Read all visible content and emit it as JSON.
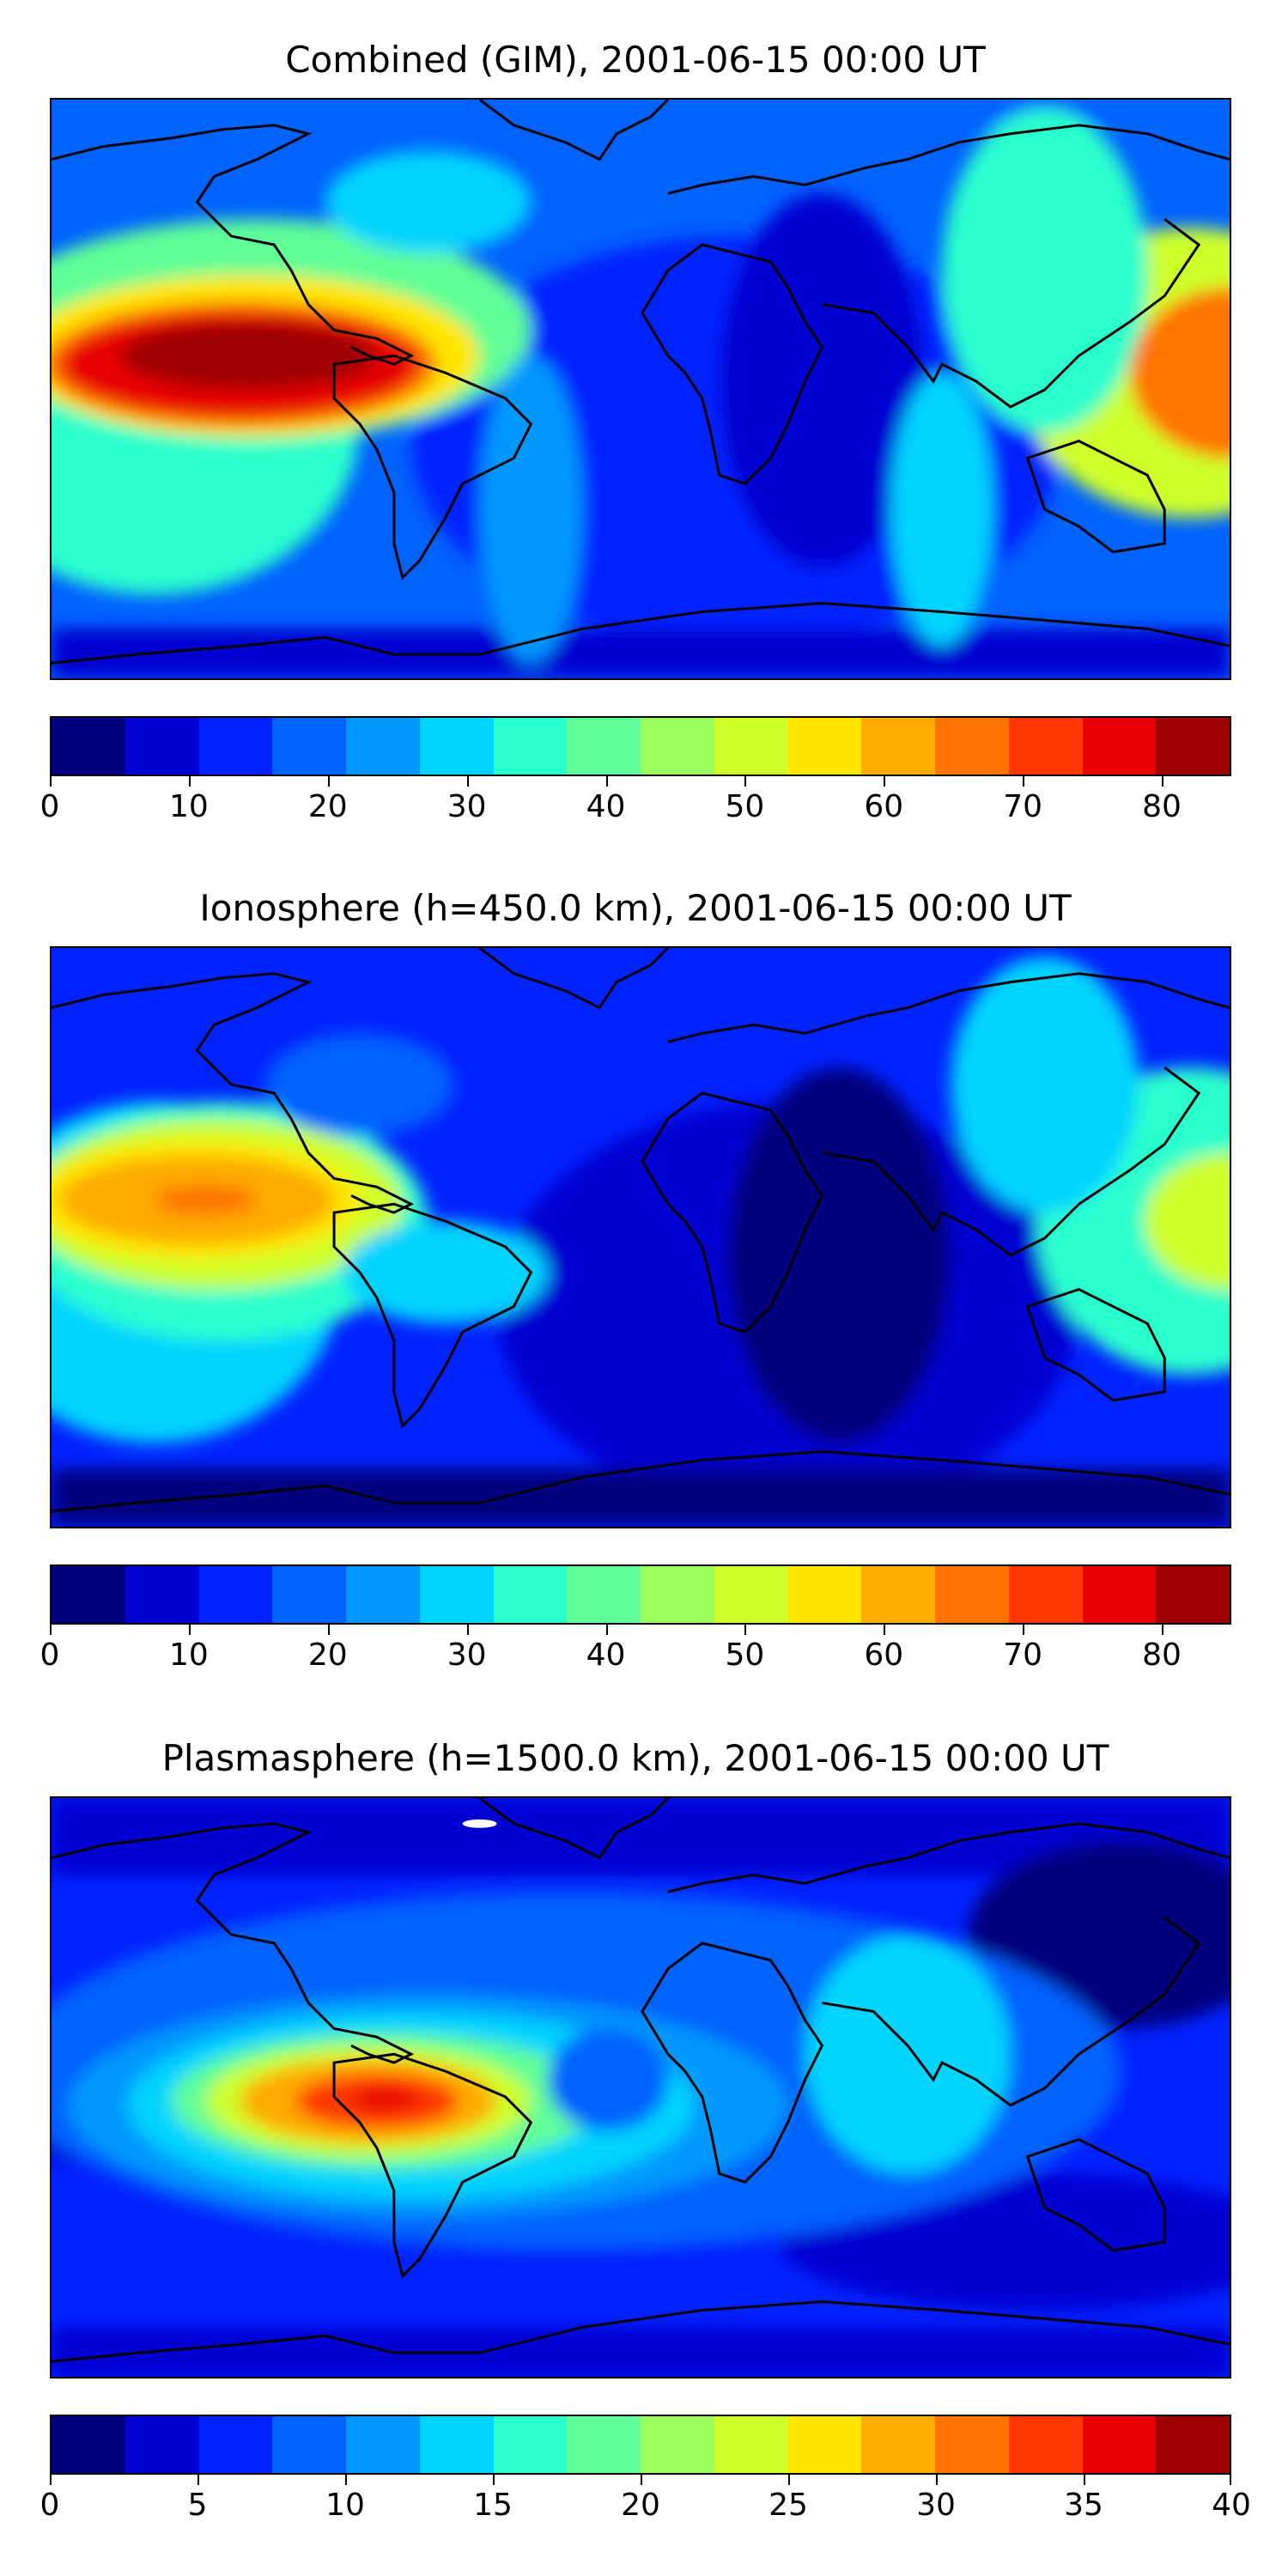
{
  "panels": [
    {
      "title": "Combined (GIM), 2001-06-15 00:00 UT",
      "colorbar": {
        "min": 0,
        "max": 85,
        "step": 5,
        "ticks": [
          "0",
          "10",
          "20",
          "30",
          "40",
          "50",
          "60",
          "70",
          "80"
        ]
      }
    },
    {
      "title": "Ionosphere  (h=450.0 km), 2001-06-15 00:00 UT",
      "colorbar": {
        "min": 0,
        "max": 85,
        "step": 5,
        "ticks": [
          "0",
          "10",
          "20",
          "30",
          "40",
          "50",
          "60",
          "70",
          "80"
        ]
      }
    },
    {
      "title": "Plasmasphere (h=1500.0 km), 2001-06-15 00:00 UT",
      "colorbar": {
        "min": 0,
        "max": 40,
        "step": 2.5,
        "ticks": [
          "0",
          "5",
          "10",
          "15",
          "20",
          "25",
          "30",
          "35",
          "40"
        ]
      }
    }
  ],
  "colors": [
    "#00007f",
    "#0000d0",
    "#0022ff",
    "#0062ff",
    "#0098ff",
    "#00d4ff",
    "#29ffce",
    "#60ff97",
    "#97ff60",
    "#ceff29",
    "#ffe600",
    "#ffab00",
    "#ff7400",
    "#ff3800",
    "#e80000",
    "#9f0000"
  ],
  "coastline_color": "#000000"
}
